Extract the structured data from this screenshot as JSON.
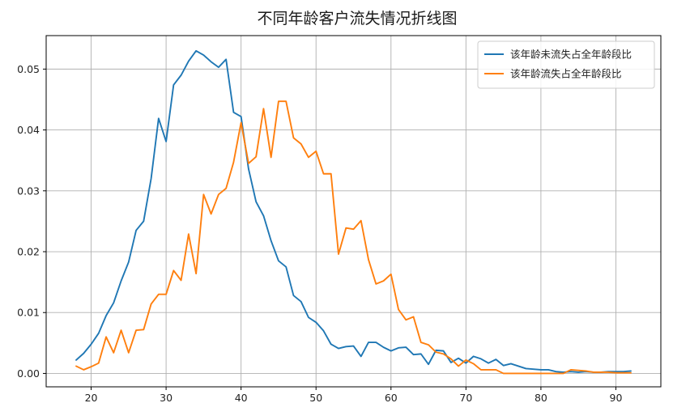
{
  "chart_data": {
    "type": "line",
    "title": "不同年龄客户流失情况折线图",
    "xlabel": "",
    "ylabel": "",
    "xlim": [
      14,
      96
    ],
    "ylim": [
      -0.0022,
      0.0555
    ],
    "xticks": [
      20,
      30,
      40,
      50,
      60,
      70,
      80,
      90
    ],
    "yticks": [
      0.0,
      0.01,
      0.02,
      0.03,
      0.04,
      0.05
    ],
    "ytick_labels": [
      "0.00",
      "0.01",
      "0.02",
      "0.03",
      "0.04",
      "0.05"
    ],
    "grid": true,
    "legend_position": "top-right",
    "series": [
      {
        "name": "该年龄未流失占全年龄段比",
        "color": "#1f77b4",
        "x": [
          18,
          19,
          20,
          21,
          22,
          23,
          24,
          25,
          26,
          27,
          28,
          29,
          30,
          31,
          32,
          33,
          34,
          35,
          36,
          37,
          38,
          39,
          40,
          41,
          42,
          43,
          44,
          45,
          46,
          47,
          48,
          49,
          50,
          51,
          52,
          53,
          54,
          55,
          56,
          57,
          58,
          59,
          60,
          61,
          62,
          63,
          64,
          65,
          66,
          67,
          68,
          69,
          70,
          71,
          72,
          73,
          74,
          75,
          76,
          77,
          78,
          79,
          80,
          81,
          82,
          83,
          84,
          85,
          86,
          87,
          88,
          89,
          90,
          91,
          92
        ],
        "y": [
          0.0022,
          0.0033,
          0.0048,
          0.0066,
          0.0095,
          0.0116,
          0.0152,
          0.0183,
          0.0235,
          0.025,
          0.032,
          0.0419,
          0.0381,
          0.0474,
          0.049,
          0.0513,
          0.053,
          0.0523,
          0.0512,
          0.0503,
          0.0516,
          0.0429,
          0.0422,
          0.0336,
          0.0282,
          0.0259,
          0.0218,
          0.0185,
          0.0175,
          0.0128,
          0.0118,
          0.0092,
          0.0084,
          0.007,
          0.0048,
          0.0041,
          0.0044,
          0.0045,
          0.0028,
          0.0051,
          0.0051,
          0.0043,
          0.0037,
          0.0042,
          0.0043,
          0.0031,
          0.0032,
          0.0015,
          0.0038,
          0.0037,
          0.0018,
          0.0025,
          0.0017,
          0.0028,
          0.0024,
          0.0017,
          0.0023,
          0.0013,
          0.0016,
          0.0012,
          0.0008,
          0.0007,
          0.0006,
          0.0006,
          0.0003,
          0.0002,
          0.0003,
          0.0002,
          0.0003,
          0.0002,
          0.0002,
          0.0003,
          0.0003,
          0.0003,
          0.0004
        ]
      },
      {
        "name": "该年龄流失占全年龄段比",
        "color": "#ff7f0e",
        "x": [
          18,
          19,
          20,
          21,
          22,
          23,
          24,
          25,
          26,
          27,
          28,
          29,
          30,
          31,
          32,
          33,
          34,
          35,
          36,
          37,
          38,
          39,
          40,
          41,
          42,
          43,
          44,
          45,
          46,
          47,
          48,
          49,
          50,
          51,
          52,
          53,
          54,
          55,
          56,
          57,
          58,
          59,
          60,
          61,
          62,
          63,
          64,
          65,
          66,
          67,
          68,
          69,
          70,
          71,
          72,
          73,
          74,
          75,
          76,
          77,
          78,
          79,
          80,
          81,
          82,
          83,
          84,
          85,
          86,
          87,
          88,
          89,
          90,
          91,
          92
        ],
        "y": [
          0.0012,
          0.0006,
          0.0011,
          0.0017,
          0.006,
          0.0034,
          0.0071,
          0.0034,
          0.0071,
          0.0072,
          0.0114,
          0.013,
          0.013,
          0.0169,
          0.0153,
          0.0229,
          0.0164,
          0.0294,
          0.0262,
          0.0294,
          0.0304,
          0.0347,
          0.0412,
          0.0345,
          0.0356,
          0.0435,
          0.0355,
          0.0447,
          0.0447,
          0.0387,
          0.0377,
          0.0355,
          0.0365,
          0.0328,
          0.0328,
          0.0196,
          0.0239,
          0.0237,
          0.0251,
          0.0187,
          0.0147,
          0.0152,
          0.0163,
          0.0105,
          0.0088,
          0.0093,
          0.0051,
          0.0047,
          0.0035,
          0.0032,
          0.0024,
          0.0012,
          0.0022,
          0.0016,
          0.0006,
          0.0006,
          0.0006,
          0.0,
          0.0,
          0.0,
          0.0,
          0.0,
          0.0,
          0.0,
          0.0,
          0.0,
          0.0006,
          0.0005,
          0.0004,
          0.0002,
          0.0002,
          0.0002,
          0.0001,
          0.0001,
          0.0001
        ]
      }
    ]
  }
}
